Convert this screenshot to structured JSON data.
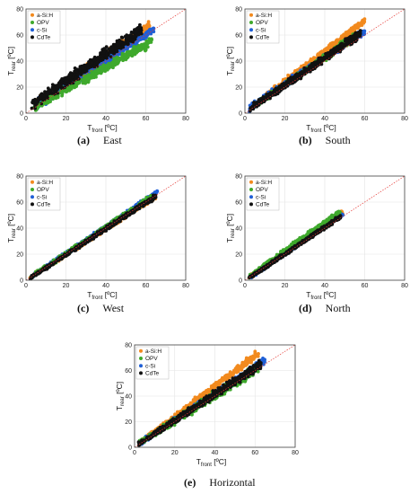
{
  "axes": {
    "x_label_main": "T",
    "x_label_sub": "front",
    "x_label_unit": " [ºC]",
    "y_label_main": "T",
    "y_label_sub": "rear",
    "y_label_unit": " [ºC]",
    "ticks": [
      "0",
      "20",
      "40",
      "60",
      "80"
    ]
  },
  "legend_markers": {
    "cdte": "•"
  },
  "colors": {
    "a-Si:H": "#f28a1e",
    "OPV": "#3fa92c",
    "c-Si": "#1f5fd6",
    "CdTe": "#111111",
    "reference_line": "#e53935"
  },
  "chart_data": [
    {
      "id": "a",
      "type": "scatter",
      "caption_letter": "(a)",
      "caption_text": "East",
      "xlim": [
        0,
        80
      ],
      "ylim": [
        0,
        80
      ],
      "grid": true,
      "legend_placement": "top-left",
      "reference_line": "y = x",
      "series": [
        {
          "name": "a-Si:H",
          "x_range": [
            5,
            62
          ],
          "y_at_x_min": [
            2,
            12
          ],
          "y_at_x_max": [
            62,
            72
          ]
        },
        {
          "name": "OPV",
          "x_range": [
            4,
            63
          ],
          "y_at_x_min": [
            0,
            8
          ],
          "y_at_x_max": [
            50,
            60
          ]
        },
        {
          "name": "c-Si",
          "x_range": [
            4,
            64
          ],
          "y_at_x_min": [
            0,
            10
          ],
          "y_at_x_max": [
            60,
            68
          ]
        },
        {
          "name": "CdTe",
          "x_range": [
            2,
            58
          ],
          "y_at_x_min": [
            0,
            12
          ],
          "y_at_x_max": [
            58,
            70
          ]
        }
      ]
    },
    {
      "id": "b",
      "type": "scatter",
      "caption_letter": "(b)",
      "caption_text": "South",
      "xlim": [
        0,
        80
      ],
      "ylim": [
        0,
        80
      ],
      "grid": true,
      "legend_placement": "top-left",
      "reference_line": "y = x",
      "series": [
        {
          "name": "a-Si:H",
          "x_range": [
            10,
            60
          ],
          "y_at_x_min": [
            10,
            16
          ],
          "y_at_x_max": [
            68,
            74
          ]
        },
        {
          "name": "OPV",
          "x_range": [
            4,
            56
          ],
          "y_at_x_min": [
            2,
            8
          ],
          "y_at_x_max": [
            56,
            64
          ]
        },
        {
          "name": "c-Si",
          "x_range": [
            2,
            60
          ],
          "y_at_x_min": [
            0,
            8
          ],
          "y_at_x_max": [
            60,
            66
          ]
        },
        {
          "name": "CdTe",
          "x_range": [
            2,
            58
          ],
          "y_at_x_min": [
            0,
            6
          ],
          "y_at_x_max": [
            56,
            66
          ]
        }
      ]
    },
    {
      "id": "c",
      "type": "scatter",
      "caption_letter": "(c)",
      "caption_text": "West",
      "xlim": [
        0,
        80
      ],
      "ylim": [
        0,
        80
      ],
      "grid": true,
      "legend_placement": "top-left",
      "reference_line": "y = x",
      "series": [
        {
          "name": "a-Si:H",
          "x_range": [
            2,
            65
          ],
          "y_at_x_min": [
            0,
            4
          ],
          "y_at_x_max": [
            62,
            66
          ]
        },
        {
          "name": "OPV",
          "x_range": [
            2,
            64
          ],
          "y_at_x_min": [
            0,
            4
          ],
          "y_at_x_max": [
            62,
            68
          ]
        },
        {
          "name": "c-Si",
          "x_range": [
            2,
            66
          ],
          "y_at_x_min": [
            0,
            4
          ],
          "y_at_x_max": [
            66,
            70
          ]
        },
        {
          "name": "CdTe",
          "x_range": [
            2,
            65
          ],
          "y_at_x_min": [
            0,
            3
          ],
          "y_at_x_max": [
            62,
            67
          ]
        }
      ]
    },
    {
      "id": "d",
      "type": "scatter",
      "caption_letter": "(d)",
      "caption_text": "North",
      "xlim": [
        0,
        80
      ],
      "ylim": [
        0,
        80
      ],
      "grid": true,
      "legend_placement": "top-left",
      "reference_line": "y = x",
      "series": [
        {
          "name": "a-Si:H",
          "x_range": [
            2,
            49
          ],
          "y_at_x_min": [
            0,
            4
          ],
          "y_at_x_max": [
            50,
            54
          ]
        },
        {
          "name": "OPV",
          "x_range": [
            2,
            48
          ],
          "y_at_x_min": [
            0,
            5
          ],
          "y_at_x_max": [
            50,
            56
          ]
        },
        {
          "name": "c-Si",
          "x_range": [
            2,
            49
          ],
          "y_at_x_min": [
            0,
            4
          ],
          "y_at_x_max": [
            49,
            53
          ]
        },
        {
          "name": "CdTe",
          "x_range": [
            2,
            48
          ],
          "y_at_x_min": [
            0,
            3
          ],
          "y_at_x_max": [
            47,
            51
          ]
        }
      ]
    },
    {
      "id": "e",
      "type": "scatter",
      "caption_letter": "(e)",
      "caption_text": "Horizontal",
      "xlim": [
        0,
        80
      ],
      "ylim": [
        0,
        80
      ],
      "grid": true,
      "legend_placement": "top-left",
      "reference_line": "y = x",
      "series": [
        {
          "name": "a-Si:H",
          "x_range": [
            4,
            62
          ],
          "y_at_x_min": [
            2,
            8
          ],
          "y_at_x_max": [
            70,
            78
          ]
        },
        {
          "name": "OPV",
          "x_range": [
            2,
            62
          ],
          "y_at_x_min": [
            0,
            6
          ],
          "y_at_x_max": [
            56,
            68
          ]
        },
        {
          "name": "c-Si",
          "x_range": [
            2,
            65
          ],
          "y_at_x_min": [
            0,
            5
          ],
          "y_at_x_max": [
            64,
            72
          ]
        },
        {
          "name": "CdTe",
          "x_range": [
            2,
            63
          ],
          "y_at_x_min": [
            0,
            5
          ],
          "y_at_x_max": [
            60,
            70
          ]
        }
      ]
    }
  ]
}
